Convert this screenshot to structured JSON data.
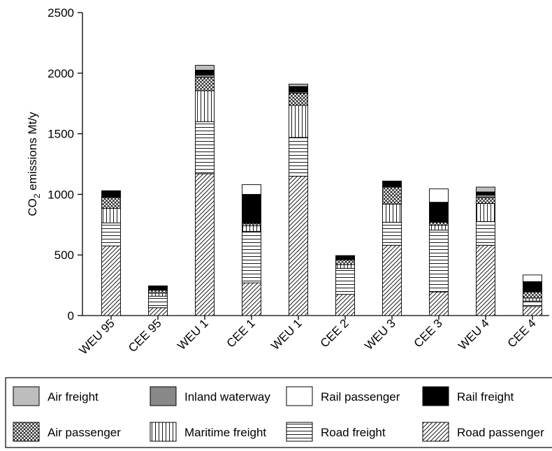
{
  "chart_data": {
    "type": "bar",
    "stacked": true,
    "title": "",
    "xlabel": "",
    "ylabel": "CO2 emissions Mt/y",
    "ylabel_main": "CO",
    "ylabel_sub": "2",
    "ylabel_rest": " emissions Mt/y",
    "ylim": [
      0,
      2500
    ],
    "yticks": [
      0,
      500,
      1000,
      1500,
      2000,
      2500
    ],
    "categories": [
      "WEU 95",
      "CEE 95",
      "WEU 1",
      "CEE 1",
      "WEU 1",
      "CEE 2",
      "WEU 3",
      "CEE 3",
      "WEU 4",
      "CEE 4"
    ],
    "series": [
      {
        "name": "Road passenger",
        "fill": "diag",
        "values": [
          575,
          65,
          1170,
          270,
          1150,
          175,
          580,
          195,
          580,
          75
        ]
      },
      {
        "name": "Road freight",
        "fill": "hlines",
        "values": [
          190,
          95,
          430,
          425,
          320,
          215,
          190,
          510,
          195,
          45
        ]
      },
      {
        "name": "Maritime freight",
        "fill": "vlines",
        "values": [
          120,
          25,
          255,
          45,
          265,
          30,
          150,
          40,
          150,
          25
        ]
      },
      {
        "name": "Air passenger",
        "fill": "cross",
        "values": [
          90,
          25,
          110,
          20,
          100,
          40,
          140,
          25,
          50,
          50
        ]
      },
      {
        "name": "Inland waterway",
        "fill": "#888888",
        "values": [
          0,
          0,
          20,
          0,
          10,
          0,
          0,
          0,
          20,
          0
        ]
      },
      {
        "name": "Rail freight",
        "fill": "#000000",
        "values": [
          55,
          30,
          40,
          240,
          45,
          35,
          50,
          165,
          25,
          85
        ]
      },
      {
        "name": "Rail passenger",
        "fill": "#ffffff",
        "values": [
          0,
          0,
          0,
          80,
          0,
          0,
          0,
          110,
          0,
          55
        ]
      },
      {
        "name": "Air freight",
        "fill": "#bdbdbd",
        "values": [
          0,
          5,
          40,
          0,
          20,
          0,
          0,
          0,
          40,
          0
        ]
      }
    ],
    "legend": {
      "placement": "bottom",
      "items": [
        "Air freight",
        "Inland waterway",
        "Rail passenger",
        "Rail freight",
        "Air passenger",
        "Maritime freight",
        "Road freight",
        "Road passenger"
      ]
    },
    "grid": false
  }
}
